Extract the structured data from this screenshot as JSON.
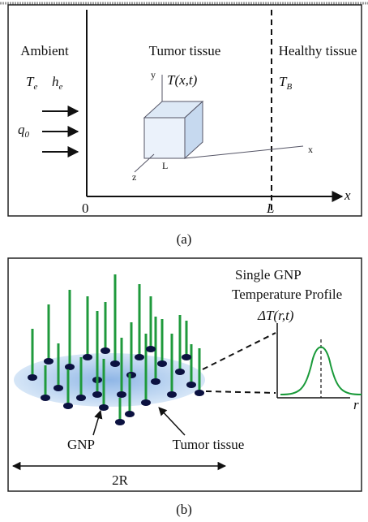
{
  "panel_a": {
    "region_left": "Ambient",
    "region_middle": "Tumor tissue",
    "region_right": "Healthy tissue",
    "ambient_temperature": {
      "symbol": "T",
      "subscript": "e"
    },
    "ambient_coefficient": {
      "symbol": "h",
      "subscript": "e"
    },
    "heat_flux": {
      "symbol": "q",
      "subscript": "0"
    },
    "tissue_temperature": "T(x,t)",
    "blood_temperature": {
      "symbol": "T",
      "subscript": "B"
    },
    "cube_axis_y": "y",
    "cube_axis_x": "x",
    "cube_axis_z": "z",
    "cube_length": "L",
    "axis_x": "x",
    "origin": "0",
    "length": "L",
    "caption": "(a)"
  },
  "panel_b": {
    "title_line1": "Single GNP",
    "title_line2": "Temperature Profile",
    "profile_axis_y": "ΔT(r,t)",
    "profile_axis_x": "r",
    "label_gnp": "GNP",
    "label_tissue": "Tumor tissue",
    "width": "2R",
    "caption": "(b)"
  }
}
